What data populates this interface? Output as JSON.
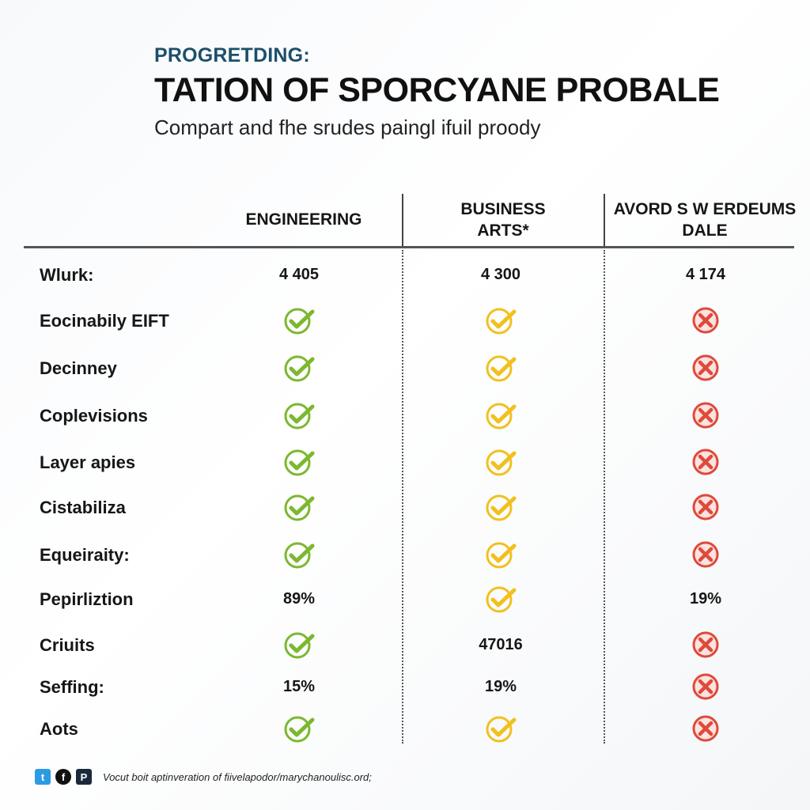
{
  "header": {
    "kicker": "PROGRETDING:",
    "title": "TATION OF SPORCYANE PROBALE",
    "subtitle": "Compart and fhe srudes paingl ifuil proody"
  },
  "columns": [
    "ENGINEERING",
    "BUSINESS\nARTS*",
    "AVORD S W ERDEUMS\nDALE"
  ],
  "rows": [
    {
      "label": "Wlurk:",
      "cells": [
        {
          "type": "text",
          "value": "4 405"
        },
        {
          "type": "text",
          "value": "4 300"
        },
        {
          "type": "text",
          "value": "4 174"
        }
      ]
    },
    {
      "label": "Eocinabily EIFT",
      "cells": [
        {
          "type": "check",
          "icon": "check-icon"
        },
        {
          "type": "check",
          "icon": "check-icon"
        },
        {
          "type": "cross",
          "icon": "cross-icon"
        }
      ]
    },
    {
      "label": "Decinney",
      "cells": [
        {
          "type": "check",
          "icon": "check-icon"
        },
        {
          "type": "check",
          "icon": "check-icon"
        },
        {
          "type": "cross",
          "icon": "cross-icon"
        }
      ]
    },
    {
      "label": "Coplevisions",
      "cells": [
        {
          "type": "check",
          "icon": "check-icon"
        },
        {
          "type": "check",
          "icon": "check-icon"
        },
        {
          "type": "cross",
          "icon": "cross-icon"
        }
      ]
    },
    {
      "label": "Layer apies",
      "cells": [
        {
          "type": "check",
          "icon": "check-icon"
        },
        {
          "type": "check",
          "icon": "check-icon"
        },
        {
          "type": "cross",
          "icon": "cross-icon"
        }
      ]
    },
    {
      "label": "Cistabiliza",
      "cells": [
        {
          "type": "check",
          "icon": "check-icon"
        },
        {
          "type": "check",
          "icon": "check-icon"
        },
        {
          "type": "cross",
          "icon": "cross-icon"
        }
      ]
    },
    {
      "label": "Equeiraity:",
      "cells": [
        {
          "type": "check",
          "icon": "check-icon"
        },
        {
          "type": "check",
          "icon": "check-icon"
        },
        {
          "type": "cross",
          "icon": "cross-icon"
        }
      ]
    },
    {
      "label": "Pepirliztion",
      "cells": [
        {
          "type": "text",
          "value": "89%"
        },
        {
          "type": "check",
          "icon": "check-icon"
        },
        {
          "type": "text",
          "value": "19%"
        }
      ]
    },
    {
      "label": "Criuits",
      "cells": [
        {
          "type": "check",
          "icon": "check-icon"
        },
        {
          "type": "text",
          "value": "47016"
        },
        {
          "type": "cross",
          "icon": "cross-icon"
        }
      ]
    },
    {
      "label": "Seffing:",
      "cells": [
        {
          "type": "text",
          "value": "15%"
        },
        {
          "type": "text",
          "value": "19%"
        },
        {
          "type": "cross",
          "icon": "cross-icon"
        }
      ]
    },
    {
      "label": "Aots",
      "cells": [
        {
          "type": "check",
          "icon": "check-icon"
        },
        {
          "type": "check",
          "icon": "check-icon"
        },
        {
          "type": "cross",
          "icon": "cross-icon"
        }
      ]
    }
  ],
  "colors": {
    "col1_check": "#7cb82f",
    "col2_check": "#f2c01e",
    "cross": "#e0493a",
    "kicker": "#1d4f6a"
  },
  "footer": {
    "icons": [
      "twitter-icon",
      "facebook-icon",
      "pinterest-icon"
    ],
    "text": "Vocut boit aptinveration of fiivelapodor/marychanoulisc.ord;"
  }
}
